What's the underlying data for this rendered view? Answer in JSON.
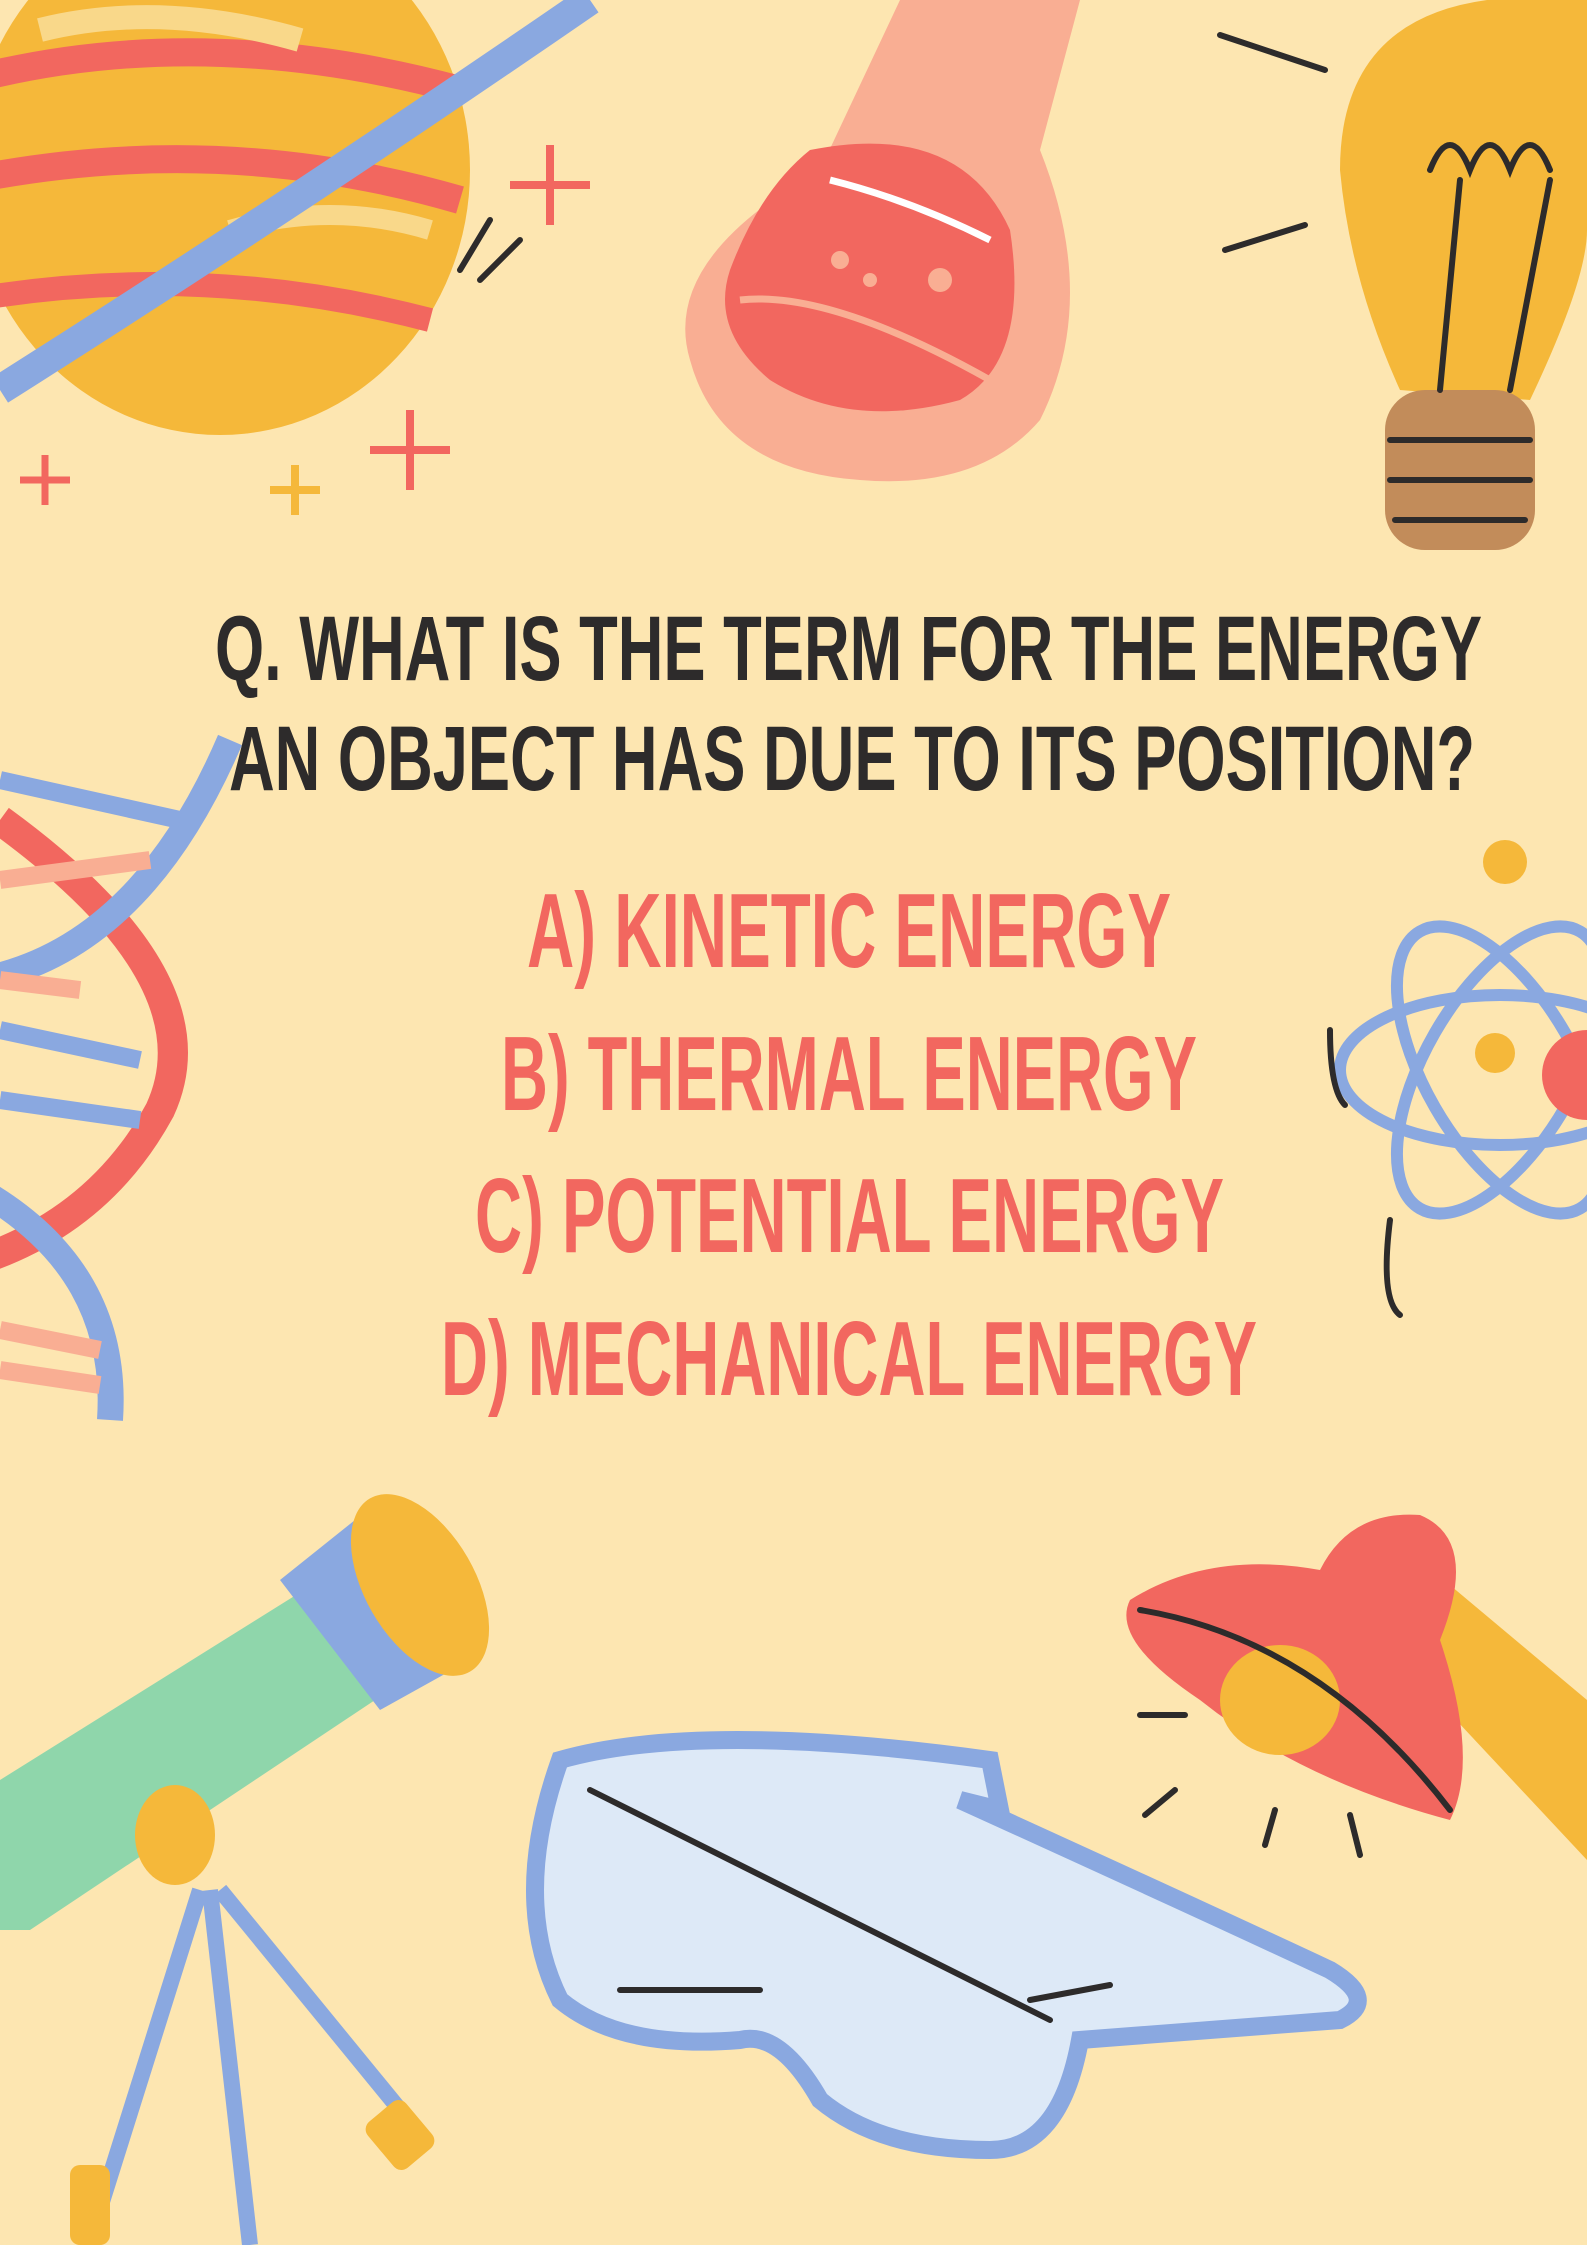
{
  "question": {
    "lines": [
      "Q. WHAT IS THE TERM FOR THE ENERGY",
      "AN OBJECT HAS DUE TO ITS POSITION?"
    ]
  },
  "options": [
    "A) KINETIC ENERGY",
    "B) THERMAL ENERGY",
    "C) POTENTIAL ENERGY",
    "D) MECHANICAL ENERGY"
  ]
}
